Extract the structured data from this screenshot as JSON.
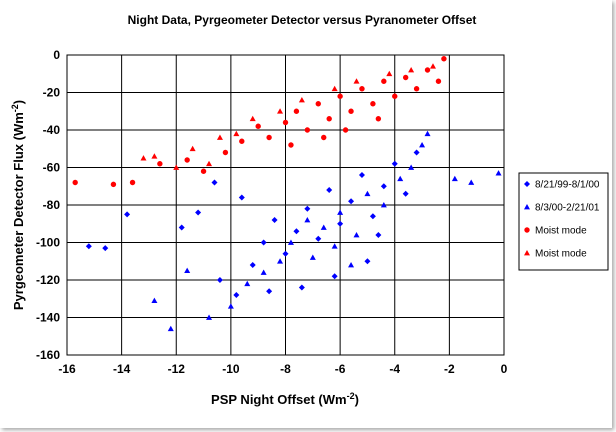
{
  "chart_data": {
    "type": "scatter",
    "title": "Night Data, Pyrgeometer Detector versus Pyranometer Offset",
    "xlabel": "PSP Night Offset (Wm",
    "xlabel_sup": "-2",
    "xlabel_end": ")",
    "ylabel": "Pyrgeometer Detector Flux (Wm",
    "ylabel_sup": "-2",
    "ylabel_end": ")",
    "xlim": [
      -16,
      0
    ],
    "ylim": [
      -160,
      0
    ],
    "x_ticks": [
      -16,
      -14,
      -12,
      -10,
      -8,
      -6,
      -4,
      -2,
      0
    ],
    "y_ticks": [
      0,
      -20,
      -40,
      -60,
      -80,
      -100,
      -120,
      -140,
      -160
    ],
    "grid": true,
    "legend_position": "right",
    "series": [
      {
        "name": "8/21/99-8/1/00",
        "marker": "diamond",
        "color": "#0000ff",
        "points": [
          [
            -15.2,
            -102
          ],
          [
            -14.6,
            -103
          ],
          [
            -13.8,
            -85
          ],
          [
            -11.8,
            -92
          ],
          [
            -11.2,
            -84
          ],
          [
            -10.6,
            -68
          ],
          [
            -9.6,
            -76
          ],
          [
            -9.2,
            -112
          ],
          [
            -8.8,
            -100
          ],
          [
            -8.4,
            -88
          ],
          [
            -8.0,
            -106
          ],
          [
            -7.6,
            -94
          ],
          [
            -7.2,
            -82
          ],
          [
            -6.8,
            -98
          ],
          [
            -6.4,
            -72
          ],
          [
            -6.0,
            -90
          ],
          [
            -5.6,
            -78
          ],
          [
            -5.2,
            -64
          ],
          [
            -4.8,
            -86
          ],
          [
            -4.4,
            -70
          ],
          [
            -4.0,
            -58
          ],
          [
            -3.6,
            -74
          ],
          [
            -3.2,
            -52
          ],
          [
            -6.2,
            -118
          ],
          [
            -5.0,
            -110
          ],
          [
            -4.6,
            -96
          ],
          [
            -7.4,
            -124
          ],
          [
            -8.6,
            -126
          ],
          [
            -9.8,
            -128
          ],
          [
            -10.4,
            -120
          ]
        ]
      },
      {
        "name": "8/3/00-2/21/01",
        "marker": "triangle",
        "color": "#0000ff",
        "points": [
          [
            -12.2,
            -146
          ],
          [
            -12.8,
            -131
          ],
          [
            -11.6,
            -115
          ],
          [
            -10.8,
            -140
          ],
          [
            -10.0,
            -134
          ],
          [
            -9.4,
            -122
          ],
          [
            -8.8,
            -116
          ],
          [
            -8.2,
            -110
          ],
          [
            -7.8,
            -100
          ],
          [
            -7.0,
            -108
          ],
          [
            -6.6,
            -92
          ],
          [
            -6.0,
            -84
          ],
          [
            -5.4,
            -96
          ],
          [
            -5.0,
            -74
          ],
          [
            -4.4,
            -80
          ],
          [
            -3.8,
            -66
          ],
          [
            -3.4,
            -60
          ],
          [
            -3.0,
            -48
          ],
          [
            -2.8,
            -42
          ],
          [
            -1.8,
            -66
          ],
          [
            -1.2,
            -68
          ],
          [
            -0.2,
            -63
          ],
          [
            -7.2,
            -88
          ],
          [
            -6.2,
            -102
          ],
          [
            -5.6,
            -112
          ]
        ]
      },
      {
        "name": "Moist mode",
        "marker": "circle",
        "color": "#ff0000",
        "points": [
          [
            -15.7,
            -68
          ],
          [
            -14.3,
            -69
          ],
          [
            -13.6,
            -68
          ],
          [
            -12.6,
            -58
          ],
          [
            -11.6,
            -56
          ],
          [
            -11.0,
            -62
          ],
          [
            -10.2,
            -52
          ],
          [
            -9.6,
            -46
          ],
          [
            -9.0,
            -38
          ],
          [
            -8.6,
            -44
          ],
          [
            -8.0,
            -36
          ],
          [
            -7.6,
            -30
          ],
          [
            -7.2,
            -40
          ],
          [
            -6.8,
            -26
          ],
          [
            -6.4,
            -34
          ],
          [
            -6.0,
            -22
          ],
          [
            -5.6,
            -30
          ],
          [
            -5.2,
            -18
          ],
          [
            -4.8,
            -26
          ],
          [
            -4.4,
            -14
          ],
          [
            -4.0,
            -22
          ],
          [
            -3.6,
            -12
          ],
          [
            -3.2,
            -18
          ],
          [
            -2.8,
            -8
          ],
          [
            -2.4,
            -14
          ],
          [
            -2.2,
            -2
          ],
          [
            -5.8,
            -40
          ],
          [
            -4.6,
            -34
          ],
          [
            -6.6,
            -44
          ],
          [
            -7.8,
            -48
          ]
        ]
      },
      {
        "name": "Moist mode",
        "marker": "triangle",
        "color": "#ff0000",
        "points": [
          [
            -13.2,
            -55
          ],
          [
            -12.8,
            -54
          ],
          [
            -12.0,
            -60
          ],
          [
            -11.4,
            -50
          ],
          [
            -10.8,
            -58
          ],
          [
            -10.4,
            -44
          ],
          [
            -9.8,
            -42
          ],
          [
            -9.2,
            -34
          ],
          [
            -8.2,
            -30
          ],
          [
            -7.4,
            -24
          ],
          [
            -6.2,
            -18
          ],
          [
            -5.4,
            -14
          ],
          [
            -4.2,
            -10
          ],
          [
            -3.4,
            -8
          ],
          [
            -2.6,
            -6
          ]
        ]
      }
    ]
  }
}
